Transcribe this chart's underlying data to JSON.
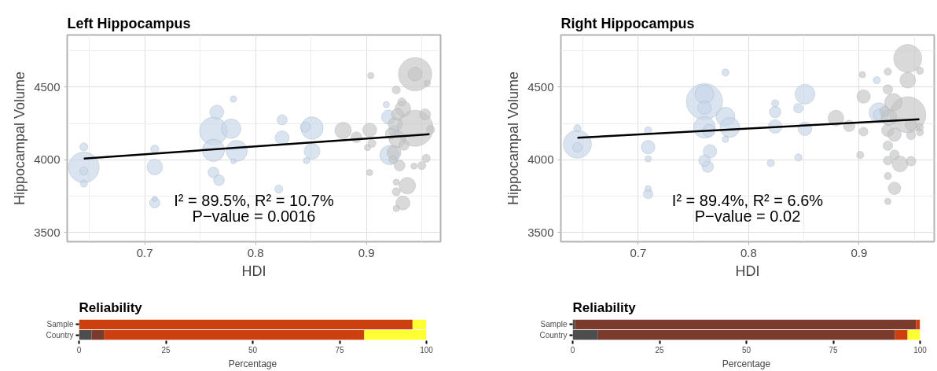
{
  "chart_data": [
    {
      "type": "bubble",
      "title": "Left Hippocampus",
      "xlabel": "HDI",
      "ylabel": "Hippocampal Volume",
      "xlim": [
        0.63,
        0.967
      ],
      "ylim": [
        3435,
        4860
      ],
      "xticks": [
        0.7,
        0.8,
        0.9
      ],
      "yticks": [
        3500,
        4000,
        4500
      ],
      "grid": true,
      "annotations": [
        "I² = 89.5%, R² = 10.7%",
        "P−value = 0.0016"
      ],
      "series": [
        {
          "color": "#c6d6ea",
          "x": [
            0.645,
            0.645,
            0.645,
            0.645,
            0.709,
            0.709,
            0.709,
            0.709,
            0.762,
            0.762,
            0.765,
            0.762,
            0.767,
            0.778,
            0.783,
            0.78,
            0.78,
            0.824,
            0.824,
            0.821,
            0.851,
            0.851,
            0.846,
            0.845,
            0.921,
            0.92,
            0.918,
            0.925
          ],
          "values": [
            3947,
            3922,
            4088,
            3836,
            3950,
            4074,
            3702,
            3730,
            4198,
            4065,
            4328,
            3912,
            3859,
            4214,
            4061,
            4418,
            3989,
            4275,
            4151,
            3798,
            4218,
            4059,
            3994,
            4225,
            4032,
            4294,
            4380,
            4200
          ],
          "sizes": [
            0.72,
            0.05,
            0.05,
            0.04,
            0.19,
            0.05,
            0.08,
            0.02,
            0.59,
            0.38,
            0.15,
            0.09,
            0.09,
            0.29,
            0.34,
            0.03,
            0.02,
            0.08,
            0.15,
            0.05,
            0.38,
            0.19,
            0.03,
            0.08,
            0.29,
            0.15,
            0.03,
            0.09
          ]
        },
        {
          "color": "#c4c4c4",
          "x": [
            0.944,
            0.944,
            0.955,
            0.904,
            0.927,
            0.944,
            0.933,
            0.879,
            0.903,
            0.891,
            0.905,
            0.901,
            0.903,
            0.937,
            0.933,
            0.927,
            0.927,
            0.927,
            0.93,
            0.925,
            0.928,
            0.926,
            0.928,
            0.932,
            0.95,
            0.954,
            0.943,
            0.924,
            0.934,
            0.922,
            0.953,
            0.958
          ],
          "values": [
            4590,
            4590,
            4527,
            4580,
            4481,
            4217,
            4351,
            4202,
            4205,
            4155,
            4113,
            4084,
            3912,
            3821,
            3702,
            3664,
            3779,
            3845,
            3960,
            4050,
            4141,
            4246,
            4313,
            4399,
            3960,
            4010,
            3956,
            4000,
            4100,
            4180,
            4313,
            4208
          ],
          "sizes": [
            0.85,
            0.15,
            0.03,
            0.03,
            0.05,
            1,
            0.19,
            0.21,
            0.15,
            0.09,
            0.05,
            0.03,
            0.03,
            0.21,
            0.15,
            0.03,
            0.05,
            0.03,
            0.09,
            0.15,
            0.21,
            0.15,
            0.11,
            0.05,
            0.05,
            0.05,
            0.03,
            0.05,
            0.08,
            0.09,
            0.09,
            0.05
          ]
        },
        {
          "type": "line",
          "color": "#000000",
          "x": [
            0.645,
            0.957
          ],
          "values": [
            4008,
            4176
          ]
        }
      ]
    },
    {
      "type": "bubble",
      "title": "Right Hippocampus",
      "xlabel": "HDI",
      "ylabel": "Hippocampal Volume",
      "xlim": [
        0.63,
        0.968
      ],
      "ylim": [
        3435,
        4860
      ],
      "xticks": [
        0.7,
        0.8,
        0.9
      ],
      "yticks": [
        3500,
        4000,
        4500
      ],
      "grid": true,
      "annotations": [
        "I² = 89.4%, R² = 6.6%",
        "P−value = 0.02"
      ],
      "series": [
        {
          "color": "#c6d6ea",
          "x": [
            0.645,
            0.645,
            0.645,
            0.709,
            0.709,
            0.709,
            0.709,
            0.709,
            0.76,
            0.76,
            0.76,
            0.76,
            0.764,
            0.765,
            0.763,
            0.76,
            0.779,
            0.783,
            0.779,
            0.779,
            0.824,
            0.824,
            0.824,
            0.82,
            0.851,
            0.851,
            0.845,
            0.845,
            0.918,
            0.916,
            0.918
          ],
          "values": [
            4107,
            4085,
            4217,
            4087,
            4203,
            4006,
            3764,
            3800,
            4401,
            4452,
            4359,
            4223,
            4200,
            4058,
            3952,
            3994,
            4297,
            4223,
            4601,
            4141,
            4329,
            4229,
            4388,
            3977,
            4452,
            4213,
            4355,
            4016,
            4324,
            4548,
            4310
          ],
          "sizes": [
            0.6,
            0.07,
            0.04,
            0.14,
            0.04,
            0.03,
            0.07,
            0.03,
            1,
            0.27,
            0.14,
            0.36,
            0.12,
            0.14,
            0.1,
            0.1,
            0.27,
            0.3,
            0.04,
            0.03,
            0.1,
            0.14,
            0.04,
            0.04,
            0.3,
            0.14,
            0.07,
            0.04,
            0.3,
            0.04,
            0.1
          ]
        },
        {
          "color": "#c4c4c4",
          "x": [
            0.944,
            0.944,
            0.944,
            0.955,
            0.926,
            0.903,
            0.904,
            0.879,
            0.891,
            0.904,
            0.901,
            0.932,
            0.926,
            0.926,
            0.926,
            0.926,
            0.926,
            0.927,
            0.931,
            0.926,
            0.937,
            0.947,
            0.932,
            0.947,
            0.947,
            0.955,
            0.955,
            0.932,
            0.923
          ],
          "values": [
            4698,
            4310,
            4548,
            4614,
            4607,
            4587,
            4436,
            4287,
            4233,
            4194,
            4033,
            3803,
            3713,
            3888,
            3994,
            4097,
            4203,
            4291,
            4397,
            4485,
            3971,
            3990,
            4035,
            4242,
            4169,
            4190,
            4223,
            4174,
            4335
          ],
          "sizes": [
            0.6,
            1,
            0.19,
            0.04,
            0.04,
            0.03,
            0.14,
            0.19,
            0.1,
            0.06,
            0.04,
            0.12,
            0.03,
            0.04,
            0.06,
            0.07,
            0.12,
            0.19,
            0.23,
            0.07,
            0.19,
            0.07,
            0.07,
            0.1,
            0.06,
            0.04,
            0.04,
            0.14,
            0.07
          ]
        },
        {
          "type": "line",
          "color": "#000000",
          "x": [
            0.645,
            0.9545
          ],
          "values": [
            4151,
            4279
          ]
        }
      ]
    },
    {
      "type": "bar",
      "orientation": "horizontal",
      "stacked": true,
      "title": "Reliability",
      "xlabel": "Percentage",
      "categories": [
        "Sample",
        "Country"
      ],
      "xlim": [
        0,
        100
      ],
      "xticks": [
        0,
        25,
        50,
        75,
        100
      ],
      "series": [
        {
          "color": "#4d4d4d",
          "values": [
            0,
            3.6
          ]
        },
        {
          "color": "#7a3a2c",
          "values": [
            0,
            3.7
          ]
        },
        {
          "color": "#cc4010",
          "values": [
            96,
            74.8
          ]
        },
        {
          "color": "#ffff33",
          "values": [
            4,
            17.9
          ]
        }
      ]
    },
    {
      "type": "bar",
      "orientation": "horizontal",
      "stacked": true,
      "title": "Reliability",
      "xlabel": "Percentage",
      "categories": [
        "Sample",
        "Country"
      ],
      "xlim": [
        0,
        100
      ],
      "xticks": [
        0,
        25,
        50,
        75,
        100
      ],
      "series": [
        {
          "color": "#4d4d4d",
          "values": [
            0.7,
            7.3
          ]
        },
        {
          "color": "#7a3a2c",
          "values": [
            98.1,
            85.5
          ]
        },
        {
          "color": "#cc4010",
          "values": [
            1.2,
            3.6
          ]
        },
        {
          "color": "#ffff33",
          "values": [
            0,
            3.6
          ]
        }
      ]
    }
  ]
}
